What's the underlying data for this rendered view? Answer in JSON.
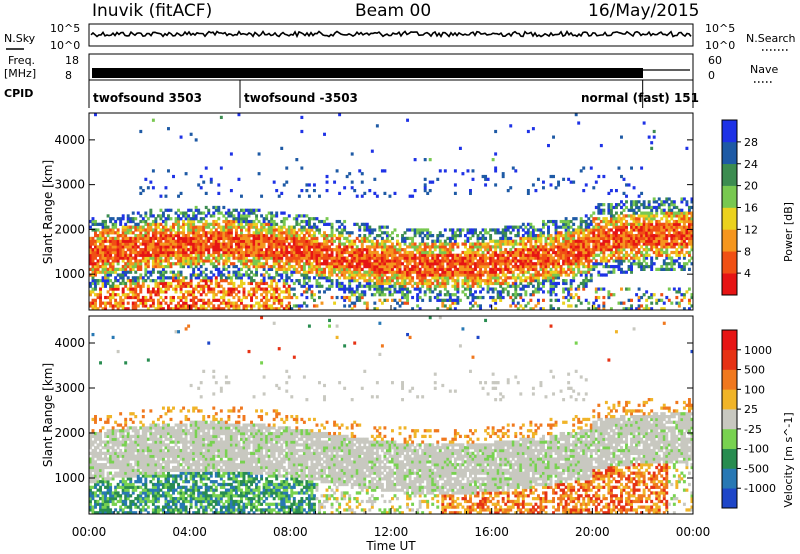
{
  "header": {
    "station": "Inuvik (fitACF)",
    "beam": "Beam 00",
    "date": "16/May/2015"
  },
  "side_labels": {
    "nsky": "N.Sky",
    "freq_line1": "Freq.",
    "freq_line2": "[MHz]",
    "cpid": "CPID",
    "nsearch": "N.Search",
    "nave": "Nave"
  },
  "nsky_axis": {
    "top": "10^5",
    "bottom": "10^0"
  },
  "nsearch_axis": {
    "top": "10^5",
    "bottom": "10^0"
  },
  "freq_axis": {
    "top": "18",
    "bottom": "8"
  },
  "nave_axis": {
    "top": "60",
    "bottom": "0"
  },
  "cpid": {
    "segments": [
      {
        "label": "twofsound 3503",
        "start_hour": 0,
        "end_hour": 6.0
      },
      {
        "label": "twofsound -3503",
        "start_hour": 6.0,
        "end_hour": 22.0
      },
      {
        "label": "normal (fast) 151",
        "start_hour": 22.0,
        "end_hour": 24.0
      }
    ]
  },
  "chart_data": [
    {
      "type": "heatmap",
      "panel": "power",
      "ylabel": "Slant Range [km]",
      "ylim": [
        200,
        4600
      ],
      "y_ticks": [
        "1000",
        "2000",
        "3000",
        "4000"
      ],
      "colorbar_label": "Power [dB]",
      "colorbar_ticks": [
        "4",
        "8",
        "12",
        "16",
        "20",
        "24",
        "28"
      ],
      "colors": [
        "#1e32e6",
        "#1e5aa5",
        "#3c8c50",
        "#78c850",
        "#ebd21e",
        "#f5961e",
        "#f05014",
        "#e61414"
      ],
      "bands": [
        {
          "x_start": 0,
          "x_end": 24,
          "range_low": 700,
          "range_high": 2300,
          "level": "high"
        },
        {
          "x_start": 2,
          "x_end": 22,
          "range_low": 2700,
          "range_high": 3400,
          "level": "low"
        }
      ]
    },
    {
      "type": "heatmap",
      "panel": "velocity",
      "ylabel": "Slant Range [km]",
      "ylim": [
        200,
        4600
      ],
      "y_ticks": [
        "1000",
        "2000",
        "3000",
        "4000"
      ],
      "colorbar_label": "Velocity [m s^-1]",
      "colorbar_ticks": [
        "1000",
        "500",
        "100",
        "25",
        "-25",
        "-100",
        "-500",
        "-1000"
      ],
      "colors": [
        "#1e46c8",
        "#2878b4",
        "#288c50",
        "#78d250",
        "#c8c8c0",
        "#f0b428",
        "#f0781e",
        "#e63214",
        "#e61414"
      ],
      "x_ticks": [
        "00:00",
        "04:00",
        "08:00",
        "12:00",
        "16:00",
        "20:00",
        "00:00"
      ],
      "xlabel": "Time UT"
    }
  ]
}
